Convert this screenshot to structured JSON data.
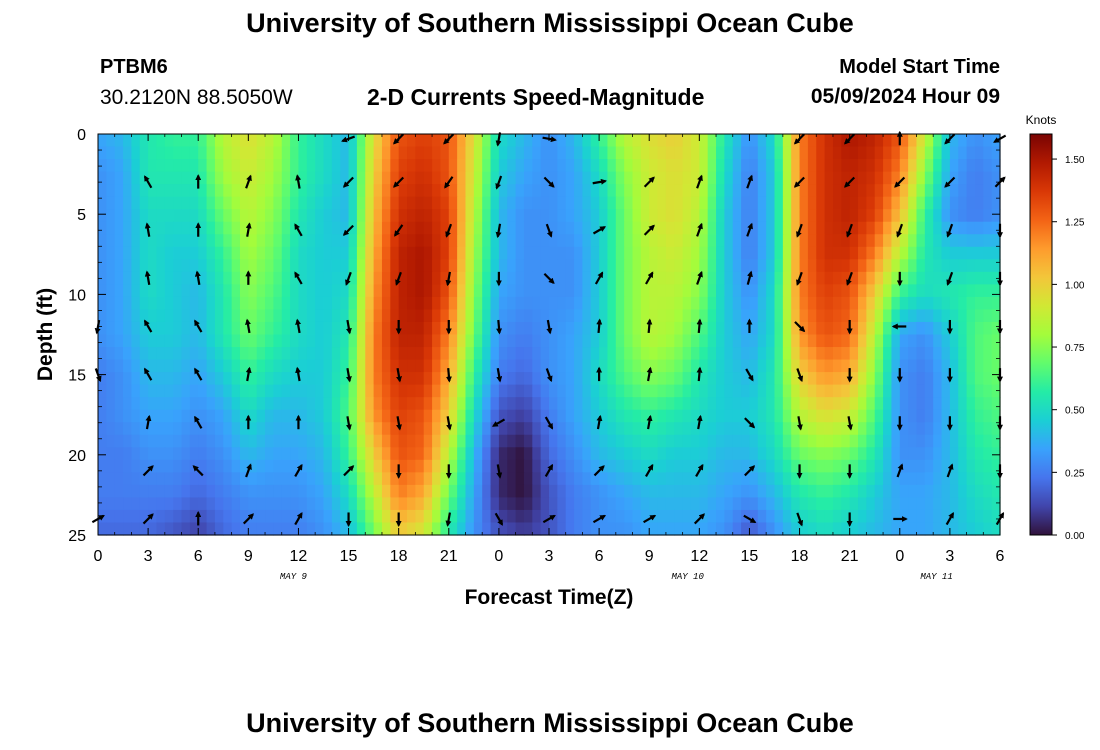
{
  "header": {
    "title": "University of Southern Mississippi Ocean Cube",
    "station_id": "PTBM6",
    "coordinates": "30.2120N  88.5050W",
    "subtitle": "2-D Currents Speed-Magnitude",
    "model_start_label": "Model Start Time",
    "model_start_value": "05/09/2024 Hour 09"
  },
  "footer": {
    "title": "University of Southern Mississippi Ocean Cube"
  },
  "chart_data": {
    "type": "heatmap",
    "title": "2-D Currents Speed-Magnitude",
    "xlabel": "Forecast Time(Z)",
    "ylabel": "Depth (ft)",
    "x_range_hours": [
      0,
      54
    ],
    "x_tick_hours": [
      0,
      3,
      6,
      9,
      12,
      15,
      18,
      21,
      24,
      27,
      30,
      33,
      36,
      39,
      42,
      45,
      48,
      51,
      54
    ],
    "x_tick_labels": [
      "0",
      "3",
      "6",
      "9",
      "12",
      "15",
      "18",
      "21",
      "0",
      "3",
      "6",
      "9",
      "12",
      "15",
      "18",
      "21",
      "0",
      "3",
      "6"
    ],
    "date_labels": [
      {
        "text": "MAY 9",
        "hour": 11.7
      },
      {
        "text": "MAY 10",
        "hour": 35.3
      },
      {
        "text": "MAY 11",
        "hour": 50.2
      }
    ],
    "y_range_ft": [
      0,
      25
    ],
    "y_ticks": [
      0,
      5,
      10,
      15,
      20,
      25
    ],
    "colorbar": {
      "label": "Knots",
      "min": 0,
      "max": 1.6,
      "ticks": [
        "0.00",
        "0.25",
        "0.50",
        "0.75",
        "1.00",
        "1.25",
        "1.50"
      ]
    },
    "colors": [
      "#30123b",
      "#4145ab",
      "#4675ed",
      "#39a2fc",
      "#1bcfd4",
      "#24eca6",
      "#61fc6c",
      "#a4fc3b",
      "#d1e834",
      "#f3c63a",
      "#fe9b2d",
      "#f36315",
      "#d93806",
      "#b11901",
      "#7a0403"
    ],
    "speed_field": {
      "description": "approximate current speed (knots), rows = depth 0,2.5,...,25 ft; cols = forecast hour 0,1.5,...,54",
      "hours": [
        0,
        1.5,
        3,
        4.5,
        6,
        7.5,
        9,
        10.5,
        12,
        13.5,
        15,
        16.5,
        18,
        19.5,
        21,
        22.5,
        24,
        25.5,
        27,
        28.5,
        30,
        31.5,
        33,
        34.5,
        36,
        37.5,
        39,
        40.5,
        42,
        43.5,
        45,
        46.5,
        48,
        49.5,
        51,
        52.5,
        54
      ],
      "depths": [
        0,
        2.5,
        5,
        7.5,
        10,
        12.5,
        15,
        17.5,
        20,
        22.5,
        25
      ],
      "values": [
        [
          0.35,
          0.4,
          0.55,
          0.6,
          0.6,
          0.85,
          0.95,
          0.85,
          0.6,
          0.5,
          0.4,
          0.95,
          1.3,
          1.35,
          1.3,
          0.95,
          0.5,
          0.4,
          0.3,
          0.4,
          0.6,
          0.85,
          0.95,
          1.0,
          0.9,
          0.55,
          0.3,
          0.5,
          1.2,
          1.4,
          1.5,
          1.45,
          1.3,
          0.9,
          0.4,
          0.3,
          0.35
        ],
        [
          0.3,
          0.35,
          0.55,
          0.55,
          0.55,
          0.8,
          0.9,
          0.8,
          0.6,
          0.5,
          0.4,
          1.0,
          1.35,
          1.4,
          1.3,
          0.9,
          0.45,
          0.35,
          0.3,
          0.35,
          0.5,
          0.75,
          0.9,
          0.95,
          0.9,
          0.5,
          0.25,
          0.45,
          1.2,
          1.4,
          1.45,
          1.4,
          1.2,
          0.75,
          0.35,
          0.25,
          0.3
        ],
        [
          0.3,
          0.35,
          0.5,
          0.5,
          0.5,
          0.7,
          0.85,
          0.75,
          0.55,
          0.45,
          0.4,
          1.05,
          1.4,
          1.45,
          1.35,
          0.85,
          0.4,
          0.3,
          0.3,
          0.35,
          0.45,
          0.7,
          0.9,
          0.95,
          0.85,
          0.45,
          0.25,
          0.45,
          1.2,
          1.4,
          1.45,
          1.35,
          1.05,
          0.6,
          0.3,
          0.25,
          0.3
        ],
        [
          0.3,
          0.35,
          0.5,
          0.45,
          0.45,
          0.6,
          0.8,
          0.7,
          0.5,
          0.45,
          0.45,
          1.1,
          1.45,
          1.5,
          1.35,
          0.8,
          0.4,
          0.3,
          0.3,
          0.3,
          0.45,
          0.7,
          0.85,
          0.9,
          0.8,
          0.45,
          0.25,
          0.45,
          1.2,
          1.4,
          1.4,
          1.2,
          0.85,
          0.55,
          0.45,
          0.45,
          0.45
        ],
        [
          0.3,
          0.35,
          0.5,
          0.45,
          0.4,
          0.55,
          0.75,
          0.65,
          0.5,
          0.45,
          0.5,
          1.15,
          1.45,
          1.5,
          1.3,
          0.75,
          0.35,
          0.3,
          0.3,
          0.3,
          0.45,
          0.7,
          0.85,
          0.85,
          0.75,
          0.45,
          0.3,
          0.5,
          1.2,
          1.35,
          1.3,
          1.0,
          0.6,
          0.5,
          0.55,
          0.6,
          0.6
        ],
        [
          0.3,
          0.35,
          0.45,
          0.45,
          0.4,
          0.55,
          0.7,
          0.6,
          0.5,
          0.45,
          0.55,
          1.2,
          1.45,
          1.45,
          1.2,
          0.7,
          0.3,
          0.25,
          0.3,
          0.35,
          0.45,
          0.7,
          0.85,
          0.8,
          0.65,
          0.45,
          0.35,
          0.5,
          1.15,
          1.3,
          1.25,
          0.85,
          0.35,
          0.3,
          0.45,
          0.65,
          0.7
        ],
        [
          0.25,
          0.3,
          0.4,
          0.4,
          0.35,
          0.45,
          0.6,
          0.5,
          0.45,
          0.45,
          0.6,
          1.2,
          1.4,
          1.4,
          1.1,
          0.6,
          0.25,
          0.2,
          0.3,
          0.35,
          0.5,
          0.65,
          0.75,
          0.7,
          0.55,
          0.45,
          0.4,
          0.55,
          1.0,
          1.15,
          1.1,
          0.75,
          0.3,
          0.25,
          0.4,
          0.65,
          0.7
        ],
        [
          0.25,
          0.3,
          0.35,
          0.35,
          0.3,
          0.35,
          0.5,
          0.4,
          0.4,
          0.45,
          0.65,
          1.15,
          1.35,
          1.3,
          1.0,
          0.5,
          0.15,
          0.1,
          0.25,
          0.35,
          0.45,
          0.55,
          0.6,
          0.55,
          0.5,
          0.45,
          0.45,
          0.55,
          0.85,
          0.95,
          0.9,
          0.65,
          0.3,
          0.25,
          0.4,
          0.6,
          0.65
        ],
        [
          0.25,
          0.25,
          0.3,
          0.3,
          0.25,
          0.3,
          0.4,
          0.35,
          0.35,
          0.4,
          0.6,
          1.0,
          1.3,
          1.25,
          0.85,
          0.4,
          0.05,
          0.0,
          0.2,
          0.3,
          0.4,
          0.45,
          0.5,
          0.45,
          0.45,
          0.4,
          0.4,
          0.5,
          0.7,
          0.75,
          0.7,
          0.55,
          0.3,
          0.3,
          0.4,
          0.55,
          0.6
        ],
        [
          0.25,
          0.25,
          0.25,
          0.25,
          0.2,
          0.25,
          0.3,
          0.3,
          0.3,
          0.35,
          0.5,
          0.85,
          1.2,
          1.1,
          0.7,
          0.35,
          0.05,
          0.0,
          0.15,
          0.25,
          0.3,
          0.35,
          0.4,
          0.4,
          0.4,
          0.35,
          0.3,
          0.4,
          0.55,
          0.6,
          0.55,
          0.45,
          0.35,
          0.35,
          0.4,
          0.5,
          0.55
        ],
        [
          0.2,
          0.2,
          0.2,
          0.15,
          0.1,
          0.2,
          0.25,
          0.25,
          0.25,
          0.3,
          0.4,
          0.7,
          1.0,
          0.9,
          0.55,
          0.3,
          0.15,
          0.1,
          0.15,
          0.25,
          0.3,
          0.3,
          0.35,
          0.35,
          0.35,
          0.3,
          0.15,
          0.3,
          0.45,
          0.5,
          0.45,
          0.4,
          0.35,
          0.35,
          0.4,
          0.45,
          0.5
        ]
      ]
    },
    "vectors": {
      "description": "current direction arrows (compass degrees toward which current flows), rows = depth 0,3.1,...,24 ft; cols = hour 0,3,...,54",
      "hours": [
        0,
        3,
        6,
        9,
        12,
        15,
        18,
        21,
        24,
        27,
        30,
        33,
        36,
        39,
        42,
        45,
        48,
        51,
        54
      ],
      "depths": [
        0.3,
        3.0,
        6.0,
        9.0,
        12.0,
        15.0,
        18.0,
        21.0,
        24.0
      ],
      "directions": [
        [
          null,
          null,
          null,
          null,
          null,
          250,
          225,
          225,
          190,
          100,
          null,
          null,
          null,
          null,
          225,
          225,
          0,
          225,
          240
        ],
        [
          null,
          330,
          0,
          20,
          350,
          225,
          225,
          215,
          200,
          135,
          80,
          45,
          20,
          20,
          225,
          225,
          225,
          225,
          45
        ],
        [
          null,
          350,
          0,
          10,
          330,
          225,
          215,
          200,
          190,
          160,
          60,
          45,
          20,
          20,
          200,
          200,
          200,
          200,
          180
        ],
        [
          null,
          350,
          350,
          0,
          330,
          200,
          200,
          190,
          180,
          135,
          30,
          30,
          20,
          15,
          200,
          200,
          180,
          200,
          180
        ],
        [
          190,
          330,
          330,
          350,
          350,
          170,
          180,
          180,
          175,
          170,
          5,
          5,
          5,
          0,
          135,
          180,
          270,
          180,
          180
        ],
        [
          160,
          330,
          330,
          10,
          350,
          170,
          170,
          175,
          170,
          160,
          0,
          10,
          5,
          150,
          160,
          180,
          180,
          180,
          180
        ],
        [
          null,
          10,
          330,
          0,
          0,
          170,
          170,
          170,
          240,
          150,
          10,
          10,
          10,
          135,
          170,
          170,
          180,
          180,
          180
        ],
        [
          null,
          45,
          315,
          20,
          30,
          45,
          180,
          180,
          170,
          30,
          45,
          30,
          30,
          45,
          180,
          180,
          20,
          20,
          180
        ],
        [
          60,
          45,
          0,
          45,
          30,
          180,
          180,
          190,
          150,
          60,
          60,
          60,
          45,
          120,
          160,
          180,
          90,
          30,
          30
        ]
      ]
    }
  }
}
